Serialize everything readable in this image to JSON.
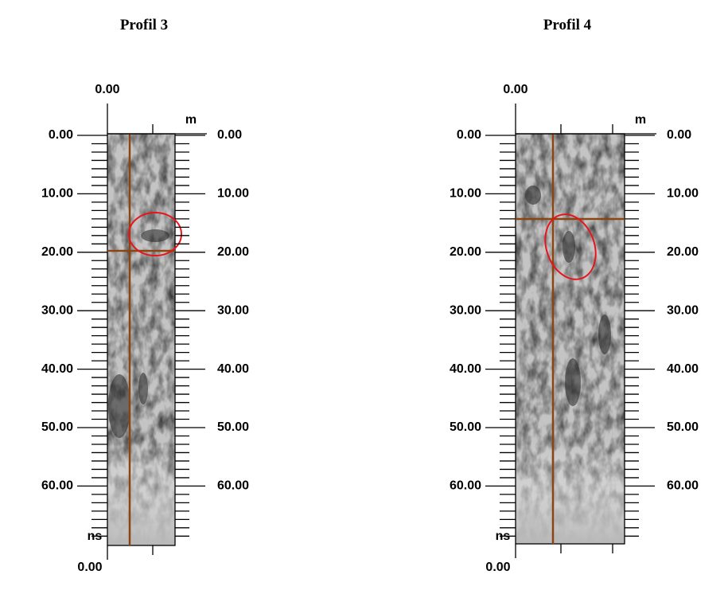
{
  "panels": [
    {
      "title": "Profil 3",
      "top_label": "0.00",
      "top_unit": "m",
      "left_ticks": [
        "0.00",
        "10.00",
        "20.00",
        "30.00",
        "40.00",
        "50.00",
        "60.00"
      ],
      "right_ticks": [
        "0.00",
        "10.00",
        "20.00",
        "30.00",
        "40.00",
        "50.00",
        "60.00"
      ],
      "bottom_unit": "ns",
      "bottom_label": "0.00"
    },
    {
      "title": "Profil 4",
      "top_label": "0.00",
      "top_unit": "m",
      "left_ticks": [
        "0.00",
        "10.00",
        "20.00",
        "30.00",
        "40.00",
        "50.00",
        "60.00"
      ],
      "right_ticks": [
        "0.00",
        "10.00",
        "20.00",
        "30.00",
        "40.00",
        "50.00",
        "60.00"
      ],
      "bottom_unit": "ns",
      "bottom_label": "0.00"
    }
  ]
}
